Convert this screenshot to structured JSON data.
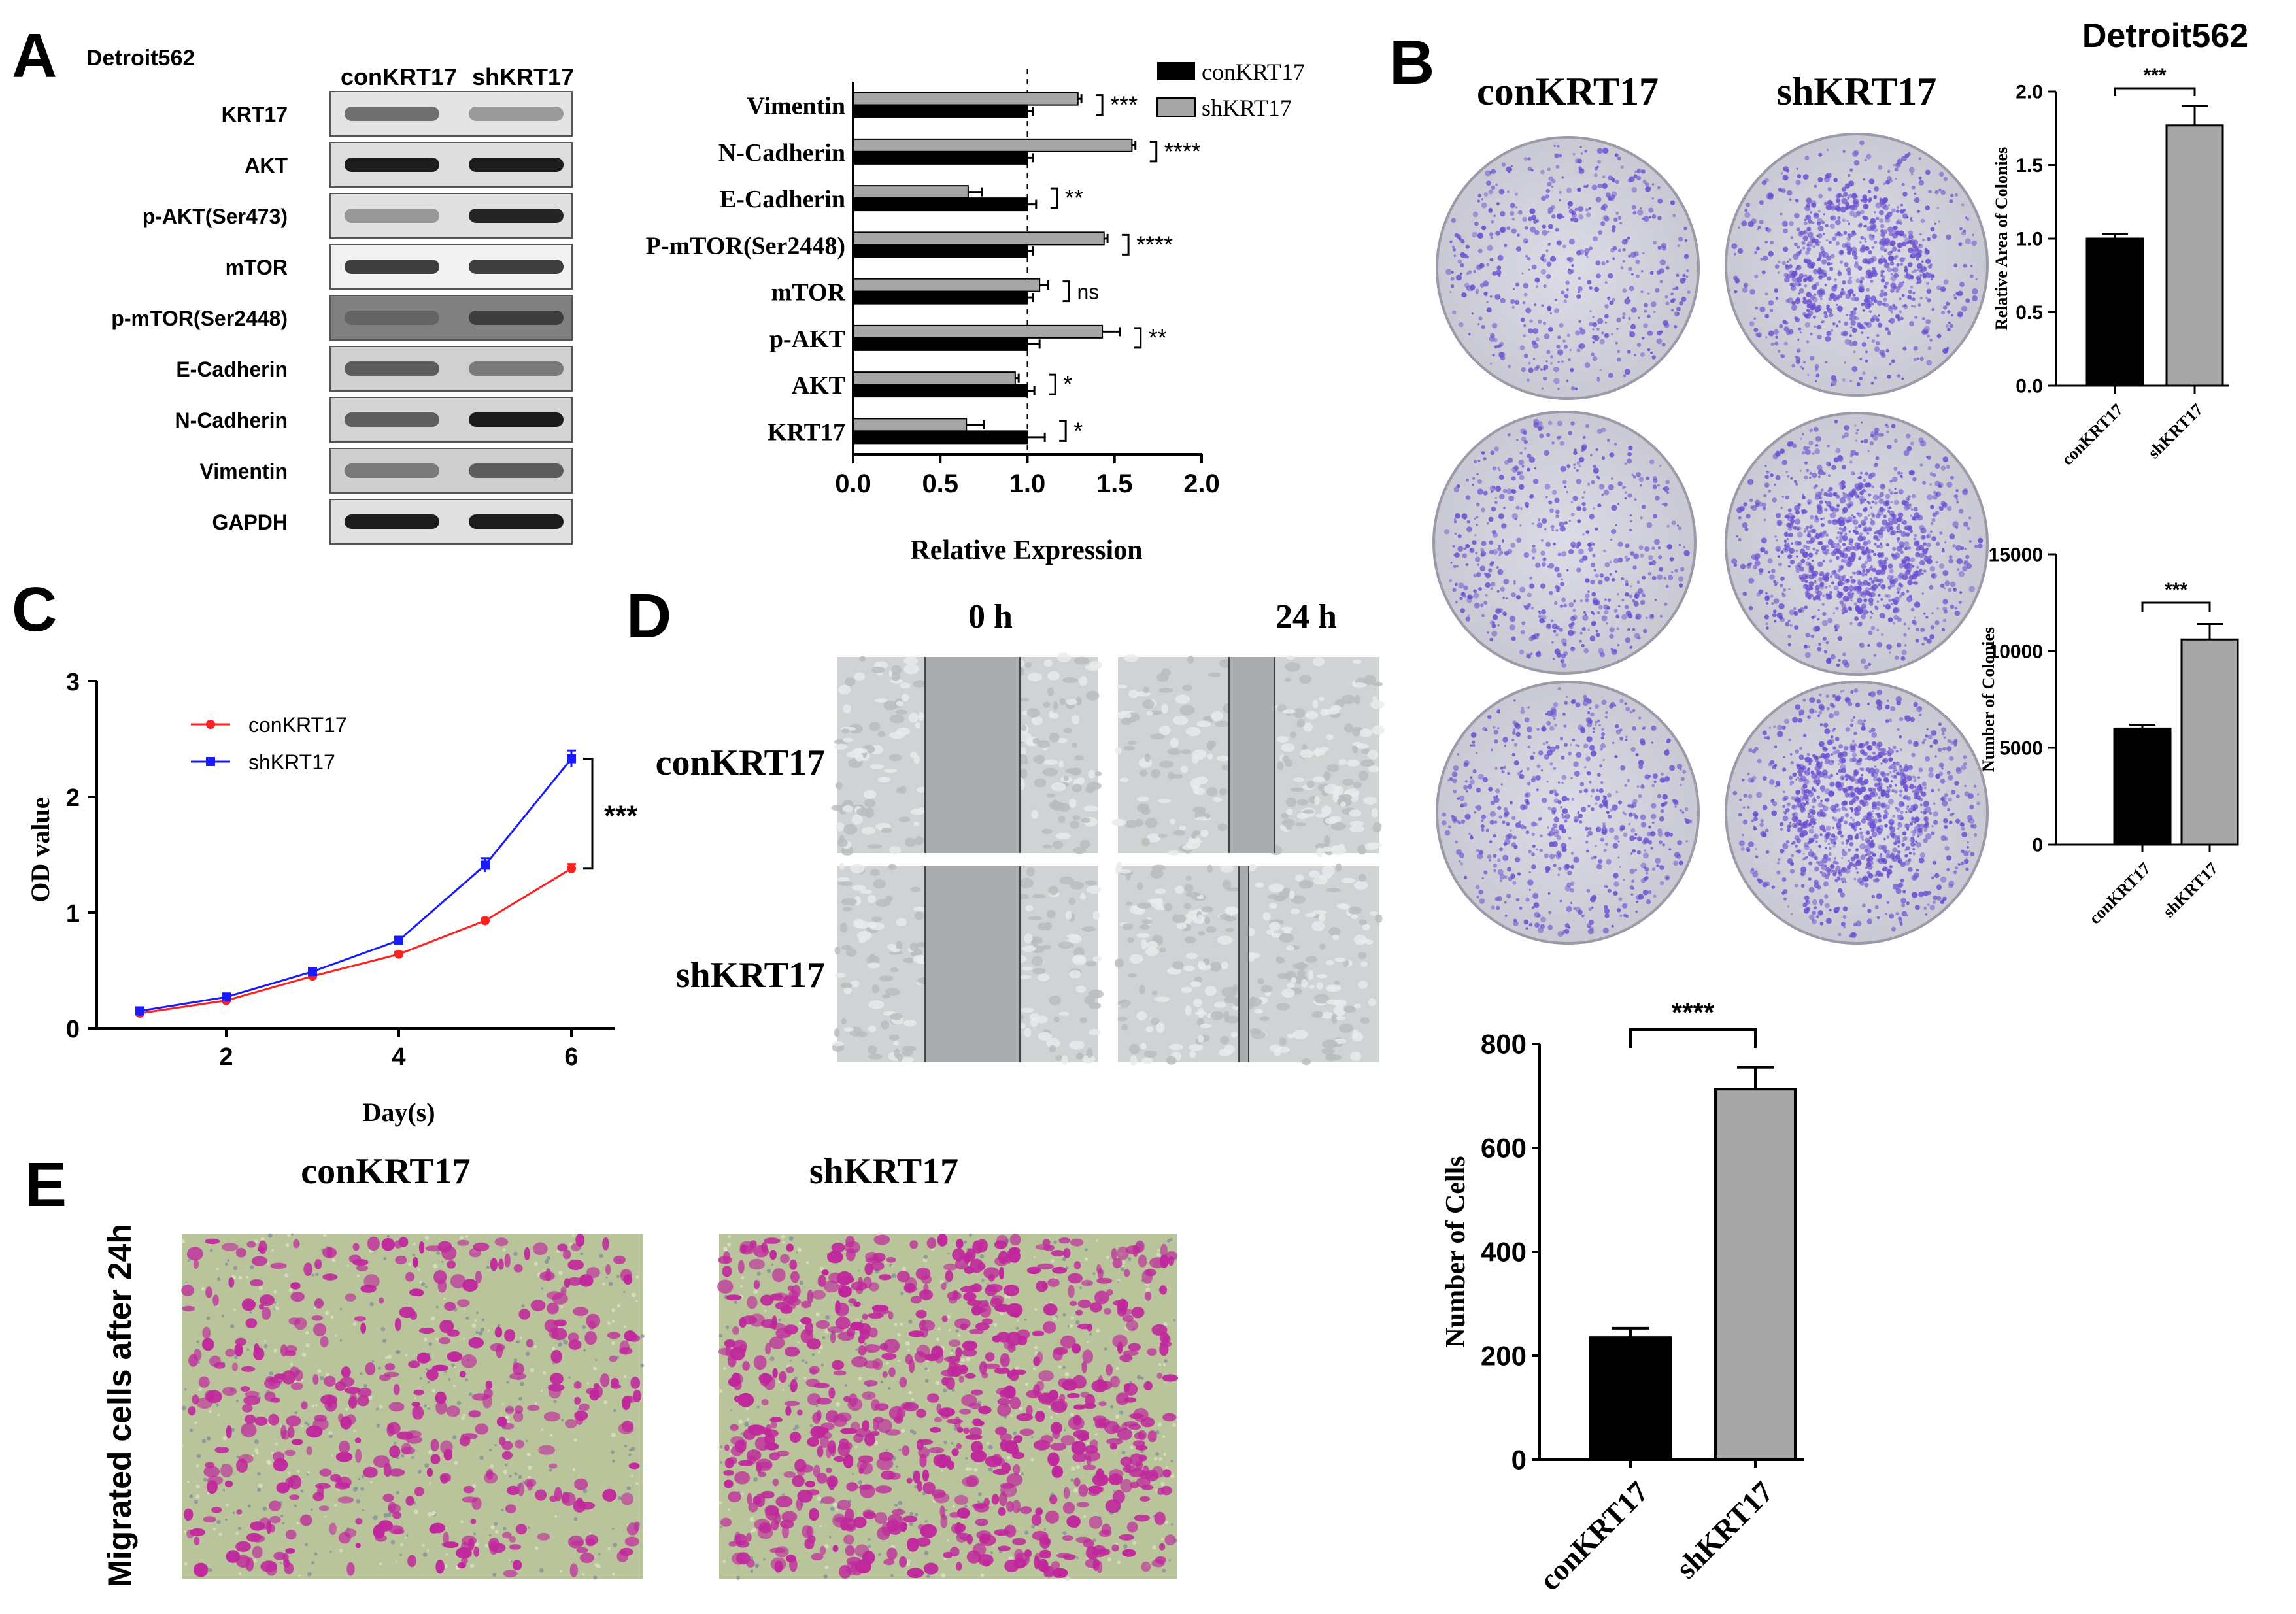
{
  "panels": {
    "A": {
      "label": "A",
      "cell_line": "Detroit562",
      "blot_columns": [
        "conKRT17",
        "shKRT17"
      ],
      "blot_rows": [
        "KRT17",
        "AKT",
        "p-AKT(Ser473)",
        "mTOR",
        "p-mTOR(Ser2448)",
        "E-Cadherin",
        "N-Cadherin",
        "Vimentin",
        "GAPDH"
      ]
    },
    "B": {
      "label": "B",
      "title": "Detroit562",
      "conditions": [
        "conKRT17",
        "shKRT17"
      ]
    },
    "C": {
      "label": "C"
    },
    "D": {
      "label": "D",
      "time_points": [
        "0 h",
        "24 h"
      ],
      "rows": [
        "conKRT17",
        "shKRT17"
      ]
    },
    "E": {
      "label": "E",
      "side_label": "Migrated cells after 24h",
      "conditions": [
        "conKRT17",
        "shKRT17"
      ]
    }
  },
  "colors": {
    "con": "#000000",
    "sh": "#a6a6a6",
    "con_line": "#ff2020",
    "sh_line": "#1a1aff",
    "crystal_violet": "#6b4fd0",
    "transwell_stain": "#c0279c"
  },
  "chart_data": [
    {
      "id": "A_relative_expression",
      "type": "bar",
      "orientation": "horizontal",
      "categories": [
        "Vimentin",
        "N-Cadherin",
        "E-Cadherin",
        "P-mTOR(Ser2448)",
        "mTOR",
        "p-AKT",
        "AKT",
        "KRT17"
      ],
      "series": [
        {
          "name": "conKRT17",
          "values": [
            1.0,
            1.0,
            1.0,
            1.0,
            1.0,
            1.0,
            1.0,
            1.0
          ],
          "errors": [
            0.03,
            0.03,
            0.05,
            0.03,
            0.03,
            0.07,
            0.04,
            0.1
          ]
        },
        {
          "name": "shKRT17",
          "values": [
            1.29,
            1.6,
            0.66,
            1.44,
            1.07,
            1.43,
            0.93,
            0.65
          ],
          "errors": [
            0.02,
            0.02,
            0.08,
            0.02,
            0.05,
            0.1,
            0.02,
            0.1
          ]
        }
      ],
      "significance": [
        "***",
        "****",
        "**",
        "****",
        "ns",
        "**",
        "*",
        "*"
      ],
      "xlabel": "Relative Expression",
      "xticks": [
        "0.0",
        "0.5",
        "1.0",
        "1.5",
        "2.0"
      ],
      "xlim": [
        0,
        2
      ],
      "reference_line": 1.0,
      "legend": "top-right"
    },
    {
      "id": "B_relative_area",
      "type": "bar",
      "categories": [
        "conKRT17",
        "shKRT17"
      ],
      "values": [
        1.0,
        1.77
      ],
      "errors": [
        0.03,
        0.13
      ],
      "ylabel": "Relative Area of Colonies",
      "yticks": [
        "0.0",
        "0.5",
        "1.0",
        "1.5",
        "2.0"
      ],
      "ylim": [
        0,
        2
      ],
      "significance": "***"
    },
    {
      "id": "B_number_colonies",
      "type": "bar",
      "categories": [
        "conKRT17",
        "shKRT17"
      ],
      "values": [
        6000,
        10600
      ],
      "errors": [
        200,
        800
      ],
      "ylabel": "Number of Colonies",
      "yticks": [
        "0",
        "5000",
        "10000",
        "15000"
      ],
      "ylim": [
        0,
        15000
      ],
      "significance": "***"
    },
    {
      "id": "C_growth_curve",
      "type": "line",
      "x": [
        1,
        2,
        3,
        4,
        5,
        6
      ],
      "series": [
        {
          "name": "conKRT17",
          "values": [
            0.13,
            0.24,
            0.45,
            0.64,
            0.93,
            1.38
          ],
          "errors": [
            0.01,
            0.01,
            0.02,
            0.02,
            0.02,
            0.04
          ]
        },
        {
          "name": "shKRT17",
          "values": [
            0.15,
            0.27,
            0.49,
            0.76,
            1.41,
            2.33
          ],
          "errors": [
            0.01,
            0.01,
            0.02,
            0.02,
            0.06,
            0.07
          ]
        }
      ],
      "xlabel": "Day(s)",
      "ylabel": "OD value",
      "xticks": [
        "2",
        "4",
        "6"
      ],
      "yticks": [
        "0",
        "1",
        "2",
        "3"
      ],
      "xlim": [
        0.5,
        6.5
      ],
      "ylim": [
        0,
        3
      ],
      "significance": "***",
      "legend": "top-left"
    },
    {
      "id": "E_number_cells",
      "type": "bar",
      "categories": [
        "conKRT17",
        "shKRT17"
      ],
      "values": [
        235,
        713
      ],
      "errors": [
        18,
        42
      ],
      "ylabel": "Number of Cells",
      "yticks": [
        "0",
        "200",
        "400",
        "600",
        "800"
      ],
      "ylim": [
        0,
        800
      ],
      "significance": "****"
    }
  ]
}
